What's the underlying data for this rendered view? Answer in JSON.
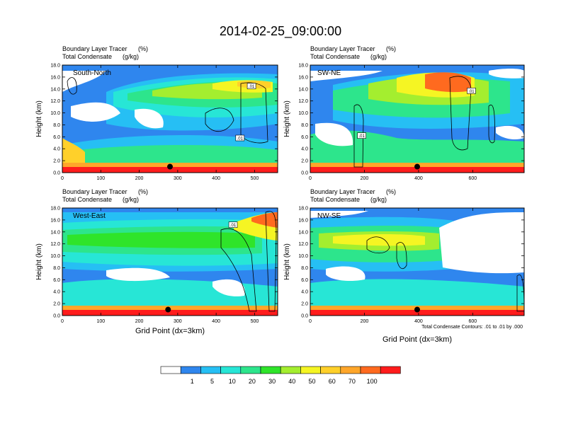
{
  "figure": {
    "title": "2014-02-25_09:00:00",
    "contour_note": "Total Condensate Contours: .01 to .01 by .000",
    "x_axis_label": "Grid Point (dx=3km)"
  },
  "chart_data": [
    {
      "type": "heatmap",
      "panel_label": "South-North",
      "subtitle_1": "Boundary Layer Tracer",
      "subtitle_1_units": "(%)",
      "subtitle_2": "Total Condensate",
      "subtitle_2_units": "(g/kg)",
      "ylabel": "Height (km)",
      "xlabel": "",
      "xlim": [
        0,
        560
      ],
      "ylim": [
        0,
        18
      ],
      "xticks": [
        "0",
        "100",
        "200",
        "300",
        "400",
        "500"
      ],
      "yticks": [
        "0.0",
        "2.0",
        "4.0",
        "6.0",
        "8.0",
        "10.0",
        "12.0",
        "14.0",
        "16.0",
        "18.0"
      ],
      "marker": {
        "x": 280,
        "y": 1.0
      },
      "contour_labels": [
        {
          "x": 492,
          "y": 14.5,
          "text": ".01"
        },
        {
          "x": 462,
          "y": 5.8,
          "text": ".01"
        }
      ]
    },
    {
      "type": "heatmap",
      "panel_label": "SW-NE",
      "subtitle_1": "Boundary Layer Tracer",
      "subtitle_1_units": "(%)",
      "subtitle_2": "Total Condensate",
      "subtitle_2_units": "(g/kg)",
      "ylabel": "Height (km)",
      "xlabel": "",
      "xlim": [
        0,
        790
      ],
      "ylim": [
        0,
        18
      ],
      "xticks": [
        "0",
        "200",
        "400",
        "600"
      ],
      "yticks": [
        "0.0",
        "2.0",
        "4.0",
        "6.0",
        "8.0",
        "10.0",
        "12.0",
        "14.0",
        "16.0",
        "18.0"
      ],
      "marker": {
        "x": 395,
        "y": 1.0
      },
      "contour_labels": [
        {
          "x": 595,
          "y": 13.7,
          "text": ".01"
        },
        {
          "x": 190,
          "y": 6.2,
          "text": ".01"
        }
      ]
    },
    {
      "type": "heatmap",
      "panel_label": "West-East",
      "subtitle_1": "Boundary Layer Tracer",
      "subtitle_1_units": "(%)",
      "subtitle_2": "Total Condensate",
      "subtitle_2_units": "(g/kg)",
      "ylabel": "Height (km)",
      "xlabel": "Grid Point (dx=3km)",
      "xlim": [
        0,
        560
      ],
      "ylim": [
        0,
        18
      ],
      "xticks": [
        "0",
        "100",
        "200",
        "300",
        "400",
        "500"
      ],
      "yticks": [
        "0.0",
        "2.0",
        "4.0",
        "6.0",
        "8.0",
        "10.0",
        "12.0",
        "14.0",
        "16.0",
        "18.0"
      ],
      "marker": {
        "x": 275,
        "y": 1.0
      },
      "contour_labels": [
        {
          "x": 444,
          "y": 15.2,
          "text": ".01"
        }
      ]
    },
    {
      "type": "heatmap",
      "panel_label": "NW-SE",
      "subtitle_1": "Boundary Layer Tracer",
      "subtitle_1_units": "(%)",
      "subtitle_2": "Total Condensate",
      "subtitle_2_units": "(g/kg)",
      "ylabel": "Height (km)",
      "xlabel": "",
      "xlim": [
        0,
        790
      ],
      "ylim": [
        0,
        18
      ],
      "xticks": [
        "0",
        "200",
        "400",
        "600"
      ],
      "yticks": [
        "0.0",
        "2.0",
        "4.0",
        "6.0",
        "8.0",
        "10.0",
        "12.0",
        "14.0",
        "16.0",
        "18.0"
      ],
      "marker": {
        "x": 395,
        "y": 1.0
      },
      "contour_labels": []
    }
  ],
  "colorbar": {
    "colors": [
      "#ffffff",
      "#2f86ee",
      "#26bff4",
      "#27e6d6",
      "#2de58c",
      "#2fe42a",
      "#a4ee2f",
      "#f5f523",
      "#ffd02a",
      "#ffa62a",
      "#ff6a1f",
      "#ff1c1c"
    ],
    "labels": [
      "1",
      "5",
      "10",
      "20",
      "30",
      "40",
      "50",
      "60",
      "70",
      "100"
    ]
  }
}
